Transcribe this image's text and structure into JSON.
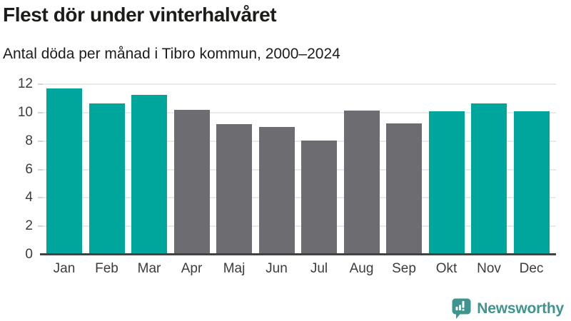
{
  "header": {
    "title": "Flest dör under vinterhalvåret",
    "subtitle": "Antal döda per månad i Tibro kommun, 2000–2024"
  },
  "chart_data": {
    "type": "bar",
    "title": "Flest dör under vinterhalvåret",
    "subtitle": "Antal döda per månad i Tibro kommun, 2000–2024",
    "categories": [
      "Jan",
      "Feb",
      "Mar",
      "Apr",
      "Maj",
      "Jun",
      "Jul",
      "Aug",
      "Sep",
      "Okt",
      "Nov",
      "Dec"
    ],
    "values": [
      11.7,
      10.65,
      11.25,
      10.2,
      9.2,
      9.0,
      8.05,
      10.15,
      9.25,
      10.1,
      10.65,
      10.1
    ],
    "bar_color_keys": [
      "winter",
      "winter",
      "winter",
      "summer",
      "summer",
      "summer",
      "summer",
      "summer",
      "summer",
      "winter",
      "winter",
      "winter"
    ],
    "palette": {
      "winter": "#00a59c",
      "summer": "#6c6c71"
    },
    "xlabel": "",
    "ylabel": "",
    "ylim": [
      0,
      12
    ],
    "yticks": [
      0,
      2,
      4,
      6,
      8,
      10,
      12
    ],
    "grid": "horizontal",
    "legend": "none"
  },
  "footer": {
    "brand": "Newsworthy",
    "brand_color": "#3e948e"
  }
}
